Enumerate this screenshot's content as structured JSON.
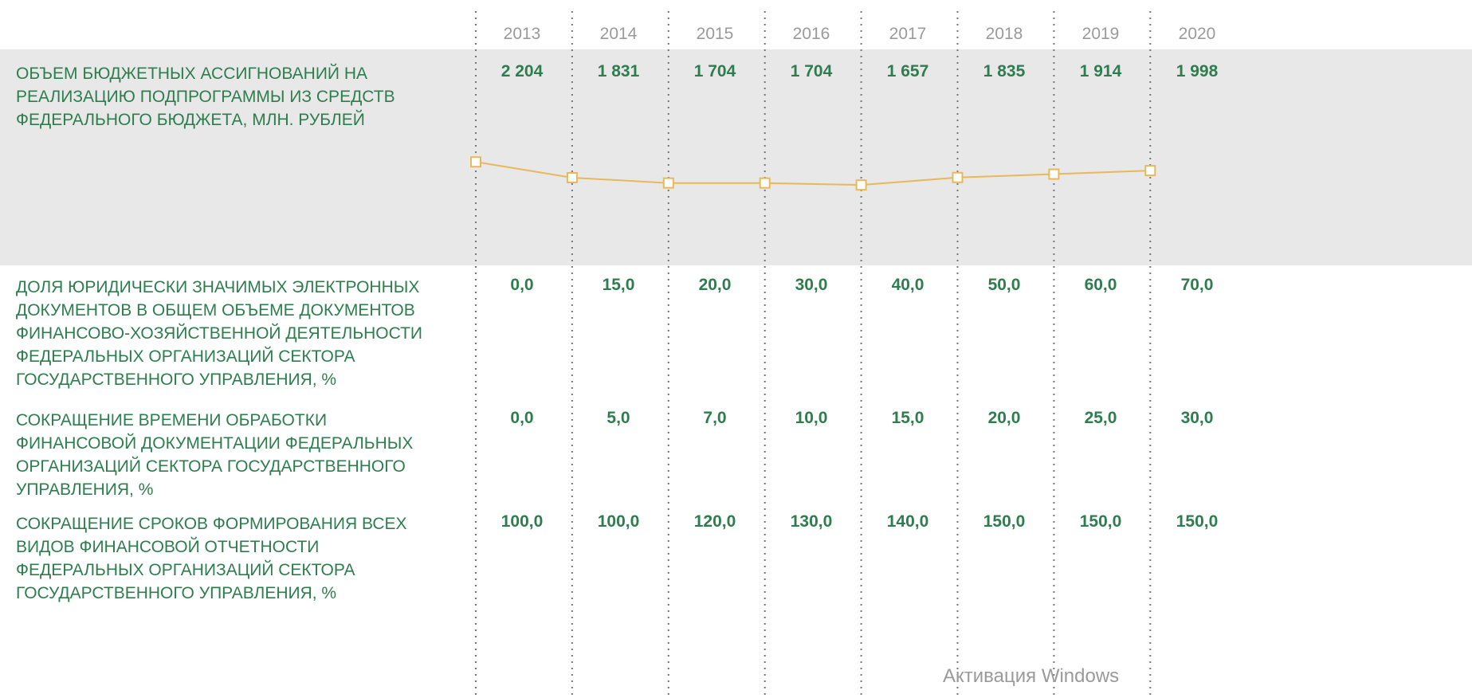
{
  "table": {
    "years": [
      "2013",
      "2014",
      "2015",
      "2016",
      "2017",
      "2018",
      "2019",
      "2020"
    ],
    "rows": [
      {
        "label": [
          "ОБЪЕМ БЮДЖЕТНЫХ АССИГНОВАНИЙ НА",
          "РЕАЛИЗАЦИЮ ПОДПРОГРАММЫ ИЗ СРЕДСТВ",
          "ФЕДЕРАЛЬНОГО БЮДЖЕТА, МЛН. РУБЛЕЙ"
        ],
        "values": [
          2204,
          1831,
          1704,
          1704,
          1657,
          1835,
          1914,
          1998
        ],
        "value_labels": [
          "2 204",
          "1 831",
          "1 704",
          "1 704",
          "1 657",
          "1 835",
          "1 914",
          "1 998"
        ]
      },
      {
        "label": [
          "ДОЛЯ ЮРИДИЧЕСКИ ЗНАЧИМЫХ ЭЛЕКТРОННЫХ",
          "ДОКУМЕНТОВ В ОБЩЕМ ОБЪЕМЕ ДОКУМЕНТОВ",
          "ФИНАНСОВО-ХОЗЯЙСТВЕННОЙ ДЕЯТЕЛЬНОСТИ",
          "ФЕДЕРАЛЬНЫХ ОРГАНИЗАЦИЙ СЕКТОРА",
          "ГОСУДАРСТВЕННОГО УПРАВЛЕНИЯ, %"
        ],
        "values": [
          "0,0",
          "15,0",
          "20,0",
          "30,0",
          "40,0",
          "50,0",
          "60,0",
          "70,0"
        ]
      },
      {
        "label": [
          "СОКРАЩЕНИЕ ВРЕМЕНИ ОБРАБОТКИ",
          "ФИНАНСОВОЙ ДОКУМЕНТАЦИИ ФЕДЕРАЛЬНЫХ",
          "ОРГАНИЗАЦИЙ СЕКТОРА ГОСУДАРСТВЕННОГО",
          "УПРАВЛЕНИЯ, %"
        ],
        "values": [
          "0,0",
          "5,0",
          "7,0",
          "10,0",
          "15,0",
          "20,0",
          "25,0",
          "30,0"
        ]
      },
      {
        "label": [
          "СОКРАЩЕНИЕ СРОКОВ ФОРМИРОВАНИЯ ВСЕХ",
          "ВИДОВ ФИНАНСОВОЙ ОТЧЕТНОСТИ",
          "ФЕДЕРАЛЬНЫХ ОРГАНИЗАЦИЙ СЕКТОРА",
          "ГОСУДАРСТВЕННОГО УПРАВЛЕНИЯ, %"
        ],
        "values": [
          "100,0",
          "100,0",
          "120,0",
          "130,0",
          "140,0",
          "150,0",
          "150,0",
          "150,0"
        ]
      }
    ]
  },
  "watermark": "Активация Windows"
}
